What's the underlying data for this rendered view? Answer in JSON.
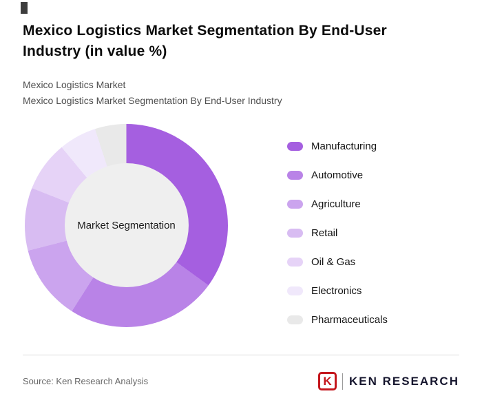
{
  "header": {
    "title": "Mexico Logistics Market Segmentation By End-User Industry (in value %)",
    "subtitle_line1": "Mexico Logistics Market",
    "subtitle_line2": "Mexico Logistics Market Segmentation By End-User Industry"
  },
  "chart_data": {
    "type": "pie",
    "variant": "donut",
    "title": "Mexico Logistics Market Segmentation By End-User Industry (in value %)",
    "center_label": "Market Segmentation",
    "legend_position": "right",
    "start_angle_deg": 0,
    "direction": "clockwise",
    "hole_color": "#efefef",
    "segments": [
      {
        "label": "Manufacturing",
        "value": 35,
        "color": "#a55fe0"
      },
      {
        "label": "Automotive",
        "value": 24,
        "color": "#b983e7"
      },
      {
        "label": "Agriculture",
        "value": 12,
        "color": "#cba4ee"
      },
      {
        "label": "Retail",
        "value": 10,
        "color": "#d8bcf2"
      },
      {
        "label": "Oil & Gas",
        "value": 8,
        "color": "#e6d3f7"
      },
      {
        "label": "Electronics",
        "value": 6,
        "color": "#f0e8fb"
      },
      {
        "label": "Pharmaceuticals",
        "value": 5,
        "color": "#e9e9e9"
      }
    ]
  },
  "footer": {
    "source": "Source: Ken Research Analysis",
    "brand": {
      "mark_letter": "K",
      "name": "KEN RESEARCH",
      "accent_color": "#c4161c"
    }
  }
}
